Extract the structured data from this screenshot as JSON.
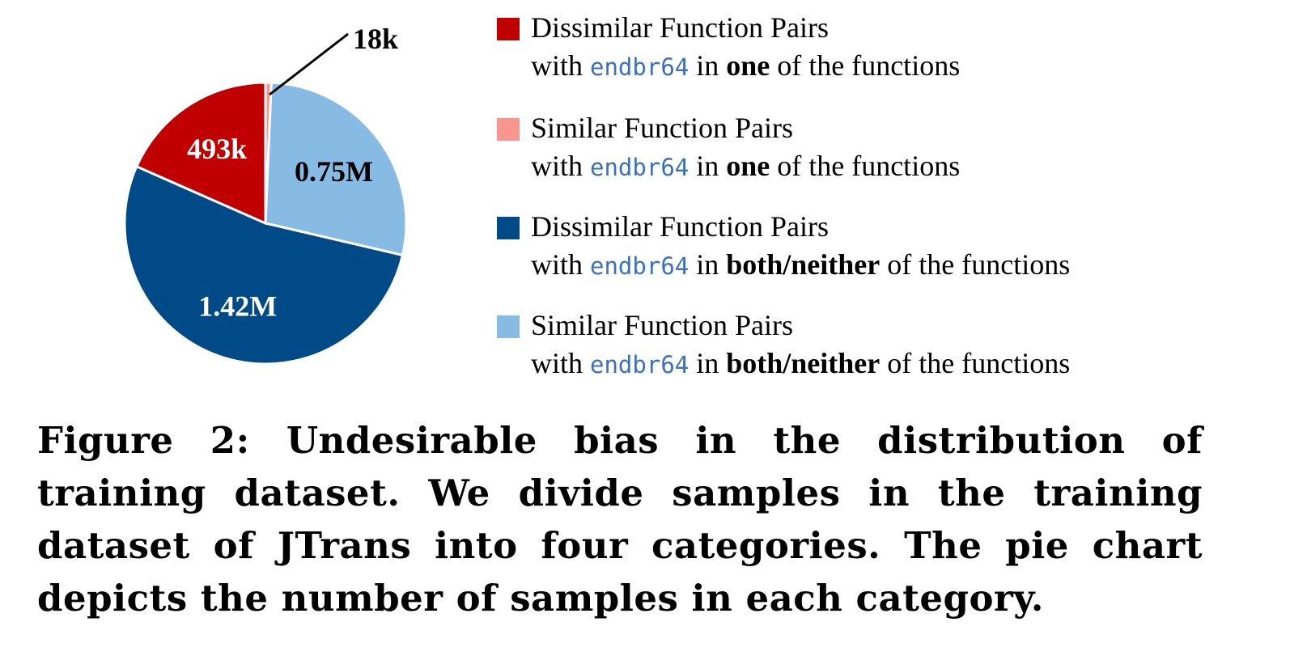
{
  "chart_data": {
    "type": "pie",
    "slices": [
      {
        "label": "Similar Function Pairs with endbr64 in one of the functions",
        "value": 18000,
        "display": "18k",
        "color": "#f7958e"
      },
      {
        "label": "Similar Function Pairs with endbr64 in both/neither of the functions",
        "value": 750000,
        "display": "0.75M",
        "color": "#88bbe4"
      },
      {
        "label": "Dissimilar Function Pairs with endbr64 in both/neither of the functions",
        "value": 1420000,
        "display": "1.42M",
        "color": "#004b87"
      },
      {
        "label": "Dissimilar Function Pairs with endbr64 in one of the functions",
        "value": 493000,
        "display": "493k",
        "color": "#c00000"
      }
    ]
  },
  "legend": [
    {
      "line1": "Dissimilar Function Pairs",
      "pre": "with ",
      "code": "endbr64",
      "mid": " in ",
      "emph": "one",
      "post": " of the functions",
      "color": "#c00000"
    },
    {
      "line1": "Similar Function Pairs",
      "pre": "with ",
      "code": "endbr64",
      "mid": " in ",
      "emph": "one",
      "post": " of the functions",
      "color": "#f7958e"
    },
    {
      "line1": "Dissimilar Function Pairs",
      "pre": "with ",
      "code": "endbr64",
      "mid": " in ",
      "emph": "both/neither",
      "post": " of the functions",
      "color": "#004b87"
    },
    {
      "line1": "Similar Function Pairs",
      "pre": "with ",
      "code": "endbr64",
      "mid": " in ",
      "emph": "both/neither",
      "post": " of the functions",
      "color": "#88bbe4"
    }
  ],
  "caption": "Figure 2: Undesirable bias in the distribution of training dataset. We divide samples in the training dataset of JTrans into four categories. The pie chart depicts the number of samples in each category."
}
